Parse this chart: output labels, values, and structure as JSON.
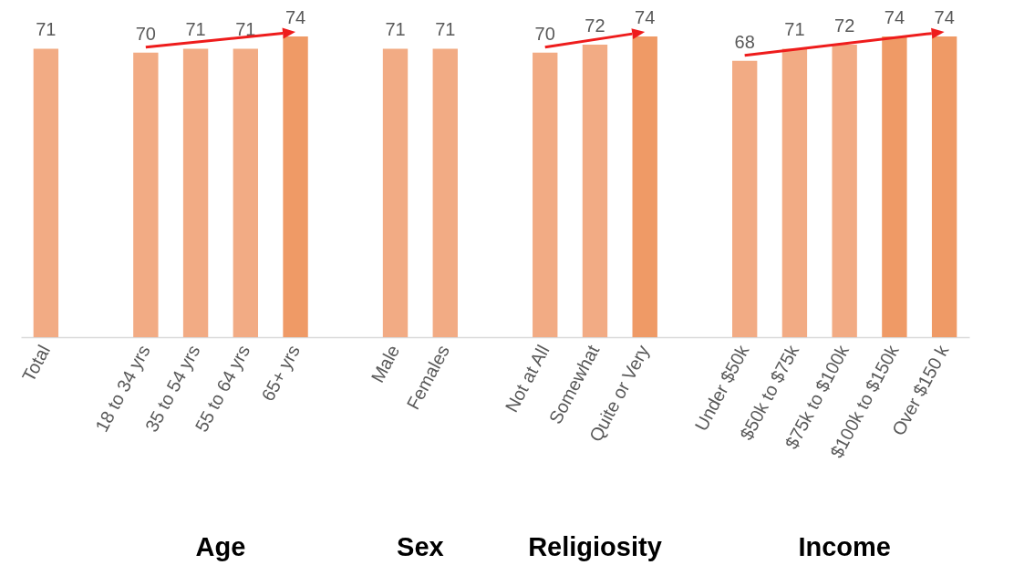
{
  "chart_data": {
    "type": "bar",
    "categories": [
      "Total",
      null,
      "18 to 34 yrs",
      "35 to 54 yrs",
      "55 to 64 yrs",
      "65+ yrs",
      null,
      "Male",
      "Females",
      null,
      "Not at All",
      "Somewhat",
      "Quite or Very",
      null,
      "Under $50k",
      "$50k to $75k",
      "$75k to $100k",
      "$100k to $150k",
      "Over $150 k"
    ],
    "values": [
      71,
      null,
      70,
      71,
      71,
      74,
      null,
      71,
      71,
      null,
      70,
      72,
      74,
      null,
      68,
      71,
      72,
      74,
      74
    ],
    "colors": [
      "#f2ab84",
      null,
      "#f2ab84",
      "#f2ab84",
      "#f2ab84",
      "#ef9a66",
      null,
      "#f2ab84",
      "#f2ab84",
      null,
      "#f2ab84",
      "#f2ab84",
      "#ef9a66",
      null,
      "#f2ab84",
      "#f2ab84",
      "#f2ab84",
      "#ef9a66",
      "#ef9a66"
    ],
    "data_labels": true,
    "annotations": [
      "Age",
      "Sex",
      "Religiosity",
      "Income"
    ]
  }
}
